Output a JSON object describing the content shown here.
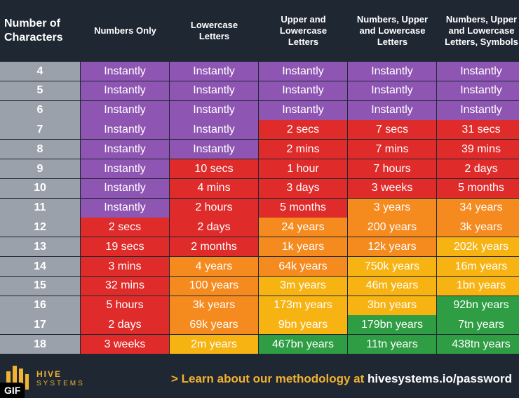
{
  "chart_data": {
    "type": "table",
    "columns": [
      "Number of\nCharacters",
      "Numbers Only",
      "Lowercase\nLetters",
      "Upper and\nLowercase\nLetters",
      "Numbers, Upper\nand Lowercase\nLetters",
      "Numbers, Upper\nand Lowercase\nLetters, Symbols"
    ],
    "rows": [
      {
        "chars": "4",
        "values": [
          "Instantly",
          "Instantly",
          "Instantly",
          "Instantly",
          "Instantly"
        ]
      },
      {
        "chars": "5",
        "values": [
          "Instantly",
          "Instantly",
          "Instantly",
          "Instantly",
          "Instantly"
        ]
      },
      {
        "chars": "6",
        "values": [
          "Instantly",
          "Instantly",
          "Instantly",
          "Instantly",
          "Instantly"
        ]
      },
      {
        "chars": "7",
        "values": [
          "Instantly",
          "Instantly",
          "2 secs",
          "7 secs",
          "31 secs"
        ]
      },
      {
        "chars": "8",
        "values": [
          "Instantly",
          "Instantly",
          "2 mins",
          "7 mins",
          "39 mins"
        ]
      },
      {
        "chars": "9",
        "values": [
          "Instantly",
          "10 secs",
          "1 hour",
          "7 hours",
          "2 days"
        ]
      },
      {
        "chars": "10",
        "values": [
          "Instantly",
          "4 mins",
          "3 days",
          "3 weeks",
          "5 months"
        ]
      },
      {
        "chars": "11",
        "values": [
          "Instantly",
          "2 hours",
          "5 months",
          "3 years",
          "34 years"
        ]
      },
      {
        "chars": "12",
        "values": [
          "2 secs",
          "2 days",
          "24 years",
          "200 years",
          "3k years"
        ]
      },
      {
        "chars": "13",
        "values": [
          "19 secs",
          "2 months",
          "1k years",
          "12k years",
          "202k years"
        ]
      },
      {
        "chars": "14",
        "values": [
          "3 mins",
          "4 years",
          "64k years",
          "750k years",
          "16m years"
        ]
      },
      {
        "chars": "15",
        "values": [
          "32 mins",
          "100 years",
          "3m years",
          "46m years",
          "1bn years"
        ]
      },
      {
        "chars": "16",
        "values": [
          "5 hours",
          "3k years",
          "173m years",
          "3bn years",
          "92bn years"
        ]
      },
      {
        "chars": "17",
        "values": [
          "2 days",
          "69k years",
          "9bn years",
          "179bn years",
          "7tn years"
        ]
      },
      {
        "chars": "18",
        "values": [
          "3 weeks",
          "2m years",
          "467bn years",
          "11tn years",
          "438tn years"
        ]
      }
    ],
    "levels": [
      [
        "purple",
        "purple",
        "purple",
        "purple",
        "purple"
      ],
      [
        "purple",
        "purple",
        "purple",
        "purple",
        "purple"
      ],
      [
        "purple",
        "purple",
        "purple",
        "purple",
        "purple"
      ],
      [
        "purple",
        "purple",
        "red",
        "red",
        "red"
      ],
      [
        "purple",
        "purple",
        "red",
        "red",
        "red"
      ],
      [
        "purple",
        "red",
        "red",
        "red",
        "red"
      ],
      [
        "purple",
        "red",
        "red",
        "red",
        "red"
      ],
      [
        "purple",
        "red",
        "red",
        "orange",
        "orange"
      ],
      [
        "red",
        "red",
        "orange",
        "orange",
        "orange"
      ],
      [
        "red",
        "red",
        "orange",
        "orange",
        "amber"
      ],
      [
        "red",
        "orange",
        "orange",
        "amber",
        "amber"
      ],
      [
        "red",
        "orange",
        "amber",
        "amber",
        "amber"
      ],
      [
        "red",
        "orange",
        "amber",
        "amber",
        "green"
      ],
      [
        "red",
        "orange",
        "amber",
        "green",
        "green"
      ],
      [
        "red",
        "amber",
        "green",
        "green",
        "green"
      ]
    ]
  },
  "colors": {
    "purple": "#8e55b3",
    "red": "#e02b2b",
    "orange": "#f58a1f",
    "amber": "#f7b312",
    "green": "#2e9d43",
    "number_column": "#9aa1ab",
    "background": "#1f2733",
    "accent": "#f2b233"
  },
  "footer": {
    "brand_top": "HIVE",
    "brand_bottom": "SYSTEMS",
    "cta_chevron": ">",
    "cta_text": "Learn about our methodology at",
    "cta_url": "hivesystems.io/password",
    "logo_icon": "hive-logo-icon"
  },
  "badge": "GIF"
}
